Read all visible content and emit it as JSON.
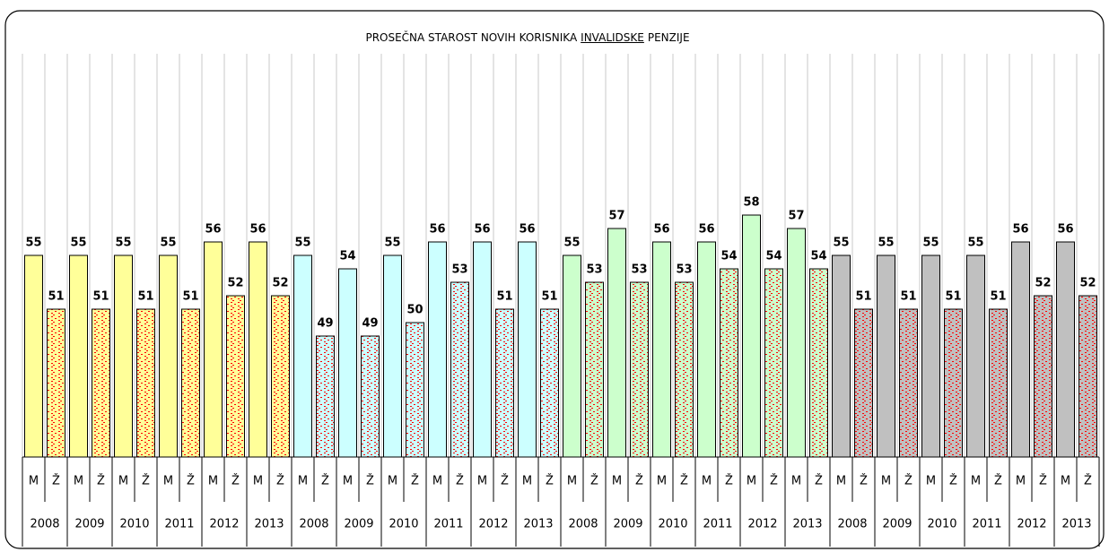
{
  "chart_data": {
    "type": "bar",
    "title": [
      "PROSEČNA STAROST NOVIH KORISNIKA",
      "INVALIDSKE",
      "PENZIJE"
    ],
    "categories": [
      "M",
      "Ž",
      "M",
      "Ž",
      "M",
      "Ž",
      "M",
      "Ž",
      "M",
      "Ž",
      "M",
      "Ž"
    ],
    "years": [
      "2008",
      "2009",
      "2010",
      "2011",
      "2012",
      "2013"
    ],
    "ylim": [
      40,
      70
    ],
    "pattern_color": "#ff0000",
    "series": [
      {
        "color": "#ffff99",
        "values": [
          55,
          51,
          55,
          51,
          55,
          51,
          55,
          51,
          56,
          52,
          56,
          52
        ]
      },
      {
        "color": "#ccffff",
        "values": [
          55,
          49,
          54,
          49,
          55,
          50,
          56,
          53,
          56,
          51,
          56,
          51
        ]
      },
      {
        "color": "#ccffcc",
        "values": [
          55,
          53,
          57,
          53,
          56,
          53,
          56,
          54,
          58,
          54,
          57,
          54
        ]
      },
      {
        "color": "#c0c0c0",
        "values": [
          55,
          51,
          55,
          51,
          55,
          51,
          55,
          51,
          56,
          52,
          56,
          52
        ]
      }
    ]
  }
}
